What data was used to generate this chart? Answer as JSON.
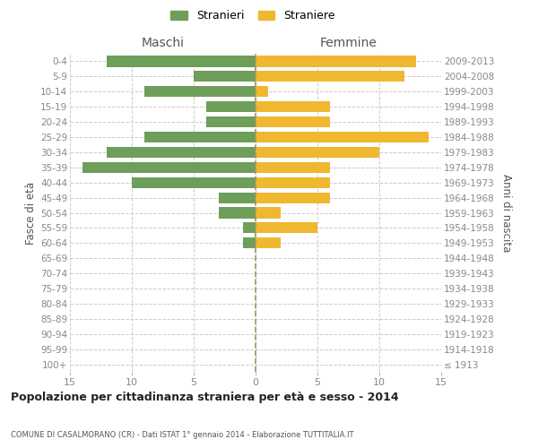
{
  "age_groups": [
    "100+",
    "95-99",
    "90-94",
    "85-89",
    "80-84",
    "75-79",
    "70-74",
    "65-69",
    "60-64",
    "55-59",
    "50-54",
    "45-49",
    "40-44",
    "35-39",
    "30-34",
    "25-29",
    "20-24",
    "15-19",
    "10-14",
    "5-9",
    "0-4"
  ],
  "birth_years": [
    "≤ 1913",
    "1914-1918",
    "1919-1923",
    "1924-1928",
    "1929-1933",
    "1934-1938",
    "1939-1943",
    "1944-1948",
    "1949-1953",
    "1954-1958",
    "1959-1963",
    "1964-1968",
    "1969-1973",
    "1974-1978",
    "1979-1983",
    "1984-1988",
    "1989-1993",
    "1994-1998",
    "1999-2003",
    "2004-2008",
    "2009-2013"
  ],
  "males": [
    0,
    0,
    0,
    0,
    0,
    0,
    0,
    0,
    1,
    1,
    3,
    3,
    10,
    14,
    12,
    9,
    4,
    4,
    9,
    5,
    12
  ],
  "females": [
    0,
    0,
    0,
    0,
    0,
    0,
    0,
    0,
    2,
    5,
    2,
    6,
    6,
    6,
    10,
    14,
    6,
    6,
    1,
    12,
    13
  ],
  "male_color": "#6d9e5a",
  "female_color": "#f0b730",
  "grid_color": "#cccccc",
  "center_line_color": "#999966",
  "title": "Popolazione per cittadinanza straniera per età e sesso - 2014",
  "subtitle": "COMUNE DI CASALMORANO (CR) - Dati ISTAT 1° gennaio 2014 - Elaborazione TUTTITALIA.IT",
  "xlabel_left": "Maschi",
  "xlabel_right": "Femmine",
  "ylabel_left": "Fasce di età",
  "ylabel_right": "Anni di nascita",
  "legend_male": "Stranieri",
  "legend_female": "Straniere",
  "xlim": 15,
  "xticks": [
    -15,
    -10,
    -5,
    0,
    5,
    10,
    15
  ],
  "xtick_labels": [
    "15",
    "10",
    "5",
    "0",
    "5",
    "10",
    "15"
  ],
  "background_color": "#ffffff",
  "tick_color": "#888888",
  "label_color": "#555555",
  "title_color": "#222222",
  "subtitle_color": "#555555"
}
